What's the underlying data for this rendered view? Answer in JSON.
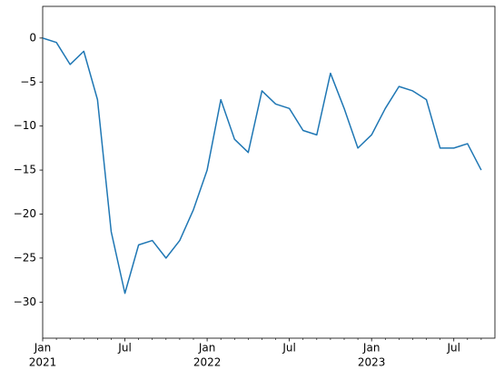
{
  "chart_data": {
    "type": "line",
    "x": [
      "2021-01",
      "2021-02",
      "2021-03",
      "2021-04",
      "2021-05",
      "2021-06",
      "2021-07",
      "2021-08",
      "2021-09",
      "2021-10",
      "2021-11",
      "2021-12",
      "2022-01",
      "2022-02",
      "2022-03",
      "2022-04",
      "2022-05",
      "2022-06",
      "2022-07",
      "2022-08",
      "2022-09",
      "2022-10",
      "2022-11",
      "2022-12",
      "2023-01",
      "2023-02",
      "2023-03",
      "2023-04",
      "2023-05",
      "2023-06",
      "2023-07",
      "2023-08",
      "2023-09"
    ],
    "series": [
      {
        "color": "#1f77b4",
        "values": [
          0,
          -0.5,
          -3,
          -1.5,
          -7,
          -22,
          -29,
          -23.5,
          -23,
          -25,
          -23,
          -19.5,
          -15,
          -7,
          -11.5,
          -13,
          -6,
          -7.5,
          -8,
          -10.5,
          -11,
          -4,
          -8,
          -12.5,
          -11,
          -8,
          -5.5,
          -6,
          -7,
          -12.5,
          -12.5,
          -12,
          -15
        ]
      }
    ],
    "xlim": [
      "2021-01",
      "2023-10"
    ],
    "xticks": [
      {
        "value": "2021-01",
        "label": "Jan"
      },
      {
        "value": "2021-07",
        "label": "Jul"
      },
      {
        "value": "2022-01",
        "label": "Jan"
      },
      {
        "value": "2022-07",
        "label": "Jul"
      },
      {
        "value": "2023-01",
        "label": "Jan"
      },
      {
        "value": "2023-07",
        "label": "Jul"
      }
    ],
    "xtick_years": [
      {
        "value": "2021-01",
        "label": "2021"
      },
      {
        "value": "2022-01",
        "label": "2022"
      },
      {
        "value": "2023-01",
        "label": "2023"
      }
    ],
    "xminorticks": [
      "2021-02",
      "2021-03",
      "2021-04",
      "2021-05",
      "2021-06",
      "2021-08",
      "2021-09",
      "2021-10",
      "2021-11",
      "2021-12",
      "2022-02",
      "2022-03",
      "2022-04",
      "2022-05",
      "2022-06",
      "2022-08",
      "2022-09",
      "2022-10",
      "2022-11",
      "2022-12",
      "2023-02",
      "2023-03",
      "2023-04",
      "2023-05",
      "2023-06",
      "2023-08",
      "2023-09"
    ],
    "ylim": [
      -34.1,
      3.6
    ],
    "yticks": [
      0,
      {
        "value": -5,
        "label": "−5"
      },
      {
        "value": -10,
        "label": "−10"
      },
      {
        "value": -15,
        "label": "−15"
      },
      {
        "value": -20,
        "label": "−20"
      },
      {
        "value": -25,
        "label": "−25"
      },
      {
        "value": -30,
        "label": "−30"
      }
    ]
  }
}
